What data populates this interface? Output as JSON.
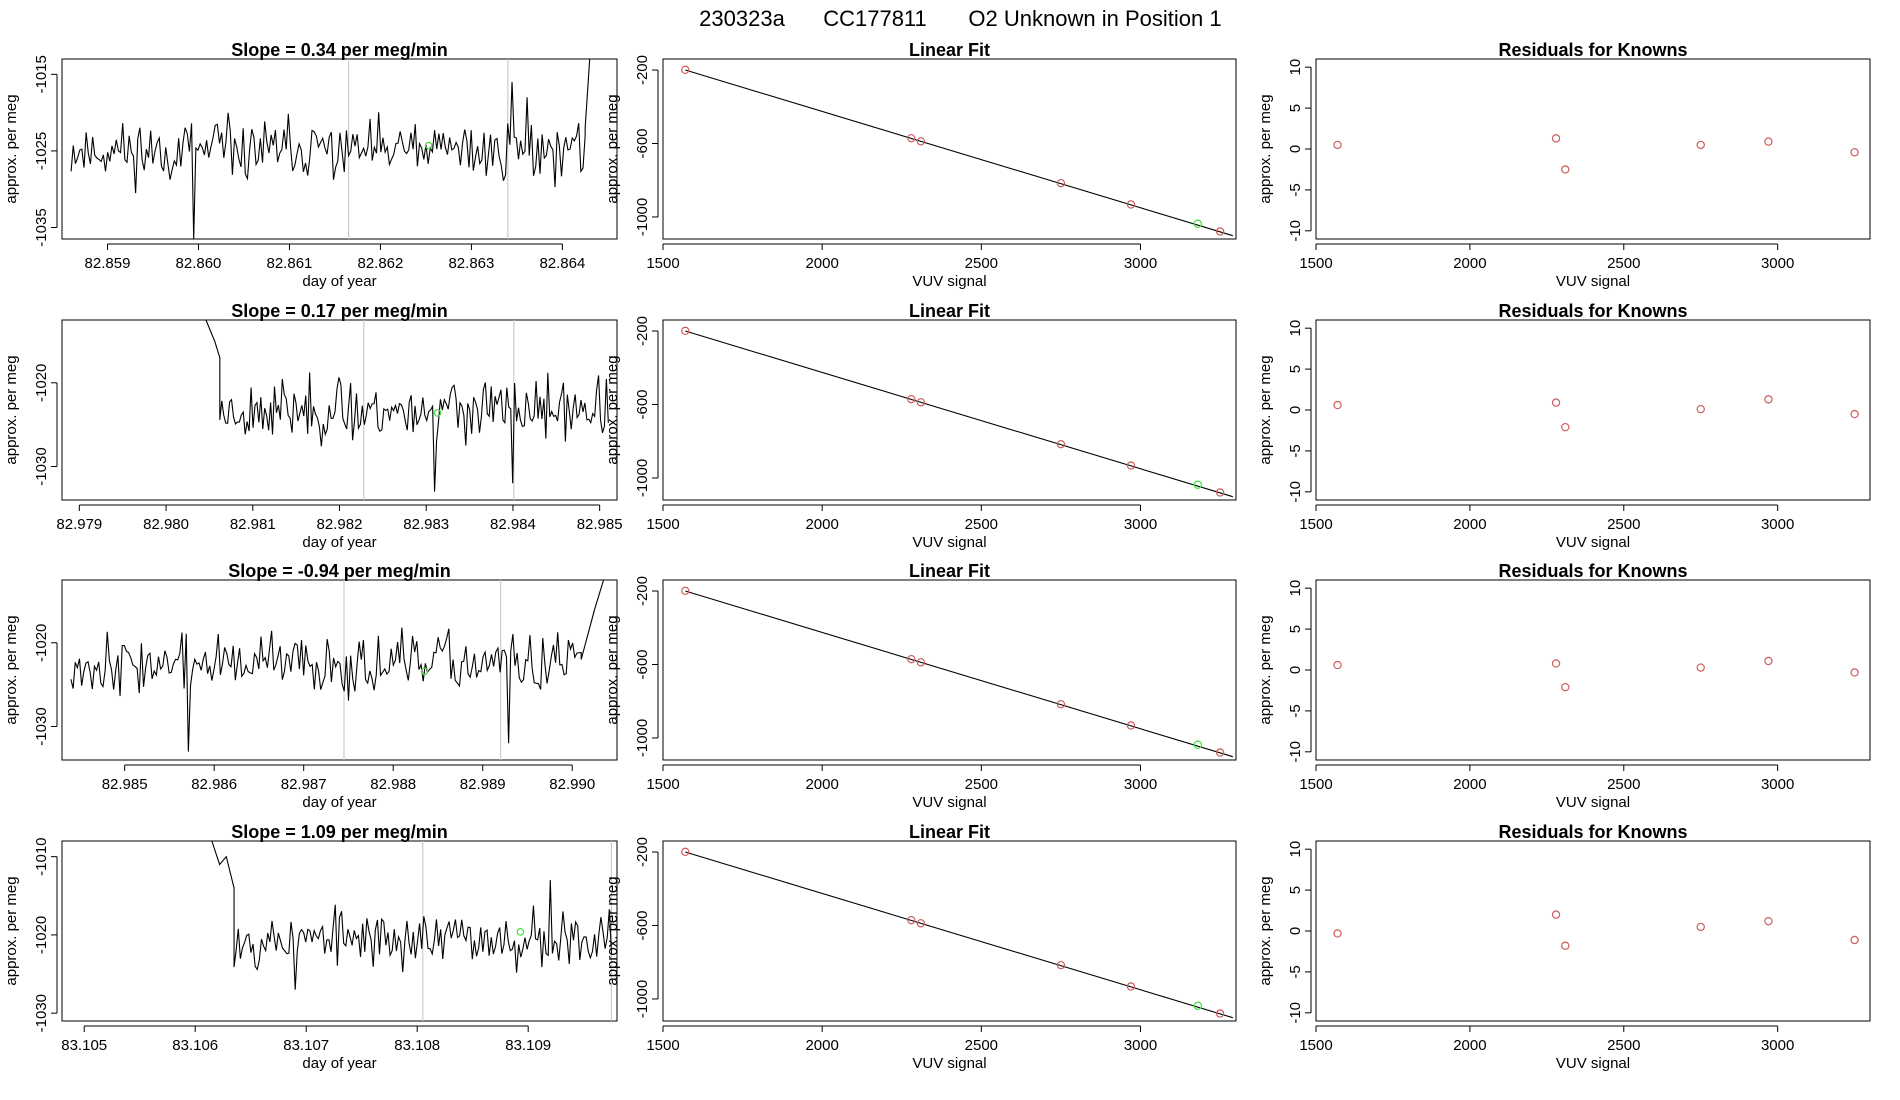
{
  "figure": {
    "title_run": "230323a",
    "title_cylinder": "CC177811",
    "title_position": "O2 Unknown in Position  1"
  },
  "colors": {
    "known_points": "#cd5c5c",
    "unknown_point": "#44dd44",
    "trace": "#000000",
    "jog_lines": "#cccccc"
  },
  "chart_data": [
    {
      "id": "row1-trace",
      "type": "line",
      "title": "Slope =  0.34  per meg/min",
      "xlabel": "day of year",
      "ylabel": "approx. per meg",
      "xlim": [
        82.8585,
        82.8646
      ],
      "ylim": [
        -1036.5,
        -1013
      ],
      "xticks": [
        82.859,
        82.86,
        82.861,
        82.862,
        82.863,
        82.864
      ],
      "xtick_labels": [
        "82.859",
        "82.860",
        "82.861",
        "82.862",
        "82.863",
        "82.864"
      ],
      "yticks": [
        -1035,
        -1025,
        -1015
      ],
      "ytick_labels": [
        "-1035",
        "-1025",
        "-1015"
      ],
      "trace": {
        "x_start": 82.8586,
        "x_end": 82.86425,
        "base": -1025,
        "amp": 3.6,
        "n": 240,
        "seed": 11,
        "features": [
          {
            "x": 82.85995,
            "y": -1036.5
          },
          {
            "x": 82.86345,
            "y": -1016
          },
          {
            "x": 82.8636,
            "y": -1018
          }
        ],
        "tail": [
          {
            "x": 82.86425,
            "y": -1022
          },
          {
            "x": 82.8643,
            "y": -1013
          }
        ]
      },
      "vlines": [
        82.86165,
        82.8634
      ],
      "unknown_point": {
        "x": 82.86253,
        "y": -1024.3
      }
    },
    {
      "id": "row1-fit",
      "type": "scatter",
      "title": "Linear Fit",
      "xlabel": "VUV signal",
      "ylabel": "approx. per meg",
      "xlim": [
        1500,
        3300
      ],
      "ylim": [
        -1120,
        -140
      ],
      "xticks": [
        1500,
        2000,
        2500,
        3000
      ],
      "xtick_labels": [
        "1500",
        "2000",
        "2500",
        "3000"
      ],
      "yticks": [
        -1000,
        -600,
        -200
      ],
      "ytick_labels": [
        "-1000",
        "-600",
        "-200"
      ],
      "fit_line": {
        "x": [
          1570,
          3290
        ],
        "y": [
          -200,
          -1102
        ]
      },
      "knowns": [
        {
          "x": 1570,
          "y": -199
        },
        {
          "x": 2280,
          "y": -571
        },
        {
          "x": 2310,
          "y": -588
        },
        {
          "x": 2750,
          "y": -816
        },
        {
          "x": 2970,
          "y": -932
        },
        {
          "x": 3250,
          "y": -1079
        }
      ],
      "unknown_point": {
        "x": 3180,
        "y": -1037
      }
    },
    {
      "id": "row1-resid",
      "type": "scatter",
      "title": "Residuals for Knowns",
      "xlabel": "VUV signal",
      "ylabel": "approx. per meg",
      "xlim": [
        1500,
        3300
      ],
      "ylim": [
        -11,
        11
      ],
      "xticks": [
        1500,
        2000,
        2500,
        3000
      ],
      "xtick_labels": [
        "1500",
        "2000",
        "2500",
        "3000"
      ],
      "yticks": [
        -10,
        -5,
        0,
        5,
        10
      ],
      "ytick_labels": [
        "-10",
        "-5",
        "0",
        "5",
        "10"
      ],
      "knowns": [
        {
          "x": 1570,
          "y": 0.5
        },
        {
          "x": 2280,
          "y": 1.3
        },
        {
          "x": 2310,
          "y": -2.5
        },
        {
          "x": 2750,
          "y": 0.5
        },
        {
          "x": 2970,
          "y": 0.9
        },
        {
          "x": 3250,
          "y": -0.4
        }
      ]
    },
    {
      "id": "row2-trace",
      "type": "line",
      "title": "Slope =  0.17  per meg/min",
      "xlabel": "day of year",
      "ylabel": "approx. per meg",
      "xlim": [
        82.9788,
        82.9852
      ],
      "ylim": [
        -1034,
        -1012.5
      ],
      "xticks": [
        82.979,
        82.98,
        82.981,
        82.982,
        82.983,
        82.984,
        82.985
      ],
      "xtick_labels": [
        "82.979",
        "82.980",
        "82.981",
        "82.982",
        "82.983",
        "82.984",
        "82.985"
      ],
      "yticks": [
        -1030,
        -1020
      ],
      "ytick_labels": [
        "-1030",
        "-1020"
      ],
      "trace": {
        "x_start": 82.98062,
        "x_end": 82.9851,
        "base": -1023.3,
        "amp": 3.3,
        "n": 200,
        "seed": 23,
        "head": [
          {
            "x": 82.98046,
            "y": -1012.5
          },
          {
            "x": 82.98056,
            "y": -1015
          },
          {
            "x": 82.98062,
            "y": -1017
          }
        ],
        "features": [
          {
            "x": 82.9831,
            "y": -1033
          },
          {
            "x": 82.984,
            "y": -1032
          }
        ],
        "tail": []
      },
      "vlines": [
        82.98228,
        82.98401
      ],
      "unknown_point": {
        "x": 82.98313,
        "y": -1023.6
      }
    },
    {
      "id": "row2-fit",
      "type": "scatter",
      "title": "Linear Fit",
      "xlabel": "VUV signal",
      "ylabel": "approx. per meg",
      "xlim": [
        1500,
        3300
      ],
      "ylim": [
        -1120,
        -140
      ],
      "xticks": [
        1500,
        2000,
        2500,
        3000
      ],
      "xtick_labels": [
        "1500",
        "2000",
        "2500",
        "3000"
      ],
      "yticks": [
        -1000,
        -600,
        -200
      ],
      "ytick_labels": [
        "-1000",
        "-600",
        "-200"
      ],
      "fit_line": {
        "x": [
          1570,
          3290
        ],
        "y": [
          -200,
          -1102
        ]
      },
      "knowns": [
        {
          "x": 1570,
          "y": -199
        },
        {
          "x": 2280,
          "y": -571
        },
        {
          "x": 2310,
          "y": -588
        },
        {
          "x": 2750,
          "y": -816
        },
        {
          "x": 2970,
          "y": -932
        },
        {
          "x": 3250,
          "y": -1079
        }
      ],
      "unknown_point": {
        "x": 3180,
        "y": -1037
      }
    },
    {
      "id": "row2-resid",
      "type": "scatter",
      "title": "Residuals for Knowns",
      "xlabel": "VUV signal",
      "ylabel": "approx. per meg",
      "xlim": [
        1500,
        3300
      ],
      "ylim": [
        -11,
        11
      ],
      "xticks": [
        1500,
        2000,
        2500,
        3000
      ],
      "xtick_labels": [
        "1500",
        "2000",
        "2500",
        "3000"
      ],
      "yticks": [
        -10,
        -5,
        0,
        5,
        10
      ],
      "ytick_labels": [
        "-10",
        "-5",
        "0",
        "5",
        "10"
      ],
      "knowns": [
        {
          "x": 1570,
          "y": 0.6
        },
        {
          "x": 2280,
          "y": 0.9
        },
        {
          "x": 2310,
          "y": -2.1
        },
        {
          "x": 2750,
          "y": 0.1
        },
        {
          "x": 2970,
          "y": 1.3
        },
        {
          "x": 3250,
          "y": -0.5
        }
      ]
    },
    {
      "id": "row3-trace",
      "type": "line",
      "title": "Slope =  -0.94  per meg/min",
      "xlabel": "day of year",
      "ylabel": "approx. per meg",
      "xlim": [
        82.9843,
        82.9905
      ],
      "ylim": [
        -1034,
        -1012.5
      ],
      "xticks": [
        82.985,
        82.986,
        82.987,
        82.988,
        82.989,
        82.99
      ],
      "xtick_labels": [
        "82.985",
        "82.986",
        "82.987",
        "82.988",
        "82.989",
        "82.990"
      ],
      "yticks": [
        -1030,
        -1020
      ],
      "ytick_labels": [
        "-1030",
        "-1020"
      ],
      "trace": {
        "x_start": 82.9844,
        "x_end": 82.9901,
        "base": -1022.5,
        "amp": 3.2,
        "n": 240,
        "seed": 37,
        "features": [
          {
            "x": 82.9857,
            "y": -1033
          },
          {
            "x": 82.9893,
            "y": -1032
          }
        ],
        "tail": [
          {
            "x": 82.9901,
            "y": -1022
          },
          {
            "x": 82.99025,
            "y": -1016
          },
          {
            "x": 82.99035,
            "y": -1012.5
          }
        ]
      },
      "vlines": [
        82.98745,
        82.9892
      ],
      "unknown_point": {
        "x": 82.98835,
        "y": -1023.4
      }
    },
    {
      "id": "row3-fit",
      "type": "scatter",
      "title": "Linear Fit",
      "xlabel": "VUV signal",
      "ylabel": "approx. per meg",
      "xlim": [
        1500,
        3300
      ],
      "ylim": [
        -1120,
        -140
      ],
      "xticks": [
        1500,
        2000,
        2500,
        3000
      ],
      "xtick_labels": [
        "1500",
        "2000",
        "2500",
        "3000"
      ],
      "yticks": [
        -1000,
        -600,
        -200
      ],
      "ytick_labels": [
        "-1000",
        "-600",
        "-200"
      ],
      "fit_line": {
        "x": [
          1570,
          3290
        ],
        "y": [
          -200,
          -1102
        ]
      },
      "knowns": [
        {
          "x": 1570,
          "y": -199
        },
        {
          "x": 2280,
          "y": -571
        },
        {
          "x": 2310,
          "y": -588
        },
        {
          "x": 2750,
          "y": -816
        },
        {
          "x": 2970,
          "y": -932
        },
        {
          "x": 3250,
          "y": -1079
        }
      ],
      "unknown_point": {
        "x": 3180,
        "y": -1037
      }
    },
    {
      "id": "row3-resid",
      "type": "scatter",
      "title": "Residuals for Knowns",
      "xlabel": "VUV signal",
      "ylabel": "approx. per meg",
      "xlim": [
        1500,
        3300
      ],
      "ylim": [
        -11,
        11
      ],
      "xticks": [
        1500,
        2000,
        2500,
        3000
      ],
      "xtick_labels": [
        "1500",
        "2000",
        "2500",
        "3000"
      ],
      "yticks": [
        -10,
        -5,
        0,
        5,
        10
      ],
      "ytick_labels": [
        "-10",
        "-5",
        "0",
        "5",
        "10"
      ],
      "knowns": [
        {
          "x": 1570,
          "y": 0.6
        },
        {
          "x": 2280,
          "y": 0.8
        },
        {
          "x": 2310,
          "y": -2.1
        },
        {
          "x": 2750,
          "y": 0.3
        },
        {
          "x": 2970,
          "y": 1.1
        },
        {
          "x": 3250,
          "y": -0.3
        }
      ]
    },
    {
      "id": "row4-trace",
      "type": "line",
      "title": "Slope =  1.09  per meg/min",
      "xlabel": "day of year",
      "ylabel": "approx. per meg",
      "xlim": [
        83.1048,
        83.1098
      ],
      "ylim": [
        -1031,
        -1008
      ],
      "xticks": [
        83.105,
        83.106,
        83.107,
        83.108,
        83.109
      ],
      "xtick_labels": [
        "83.105",
        "83.106",
        "83.107",
        "83.108",
        "83.109"
      ],
      "yticks": [
        -1030,
        -1020,
        -1010
      ],
      "ytick_labels": [
        "-1030",
        "-1020",
        "-1010"
      ],
      "trace": {
        "x_start": 83.10635,
        "x_end": 83.10975,
        "base": -1020.5,
        "amp": 3.3,
        "n": 180,
        "seed": 53,
        "head": [
          {
            "x": 83.10615,
            "y": -1008
          },
          {
            "x": 83.10622,
            "y": -1011
          },
          {
            "x": 83.10628,
            "y": -1010
          },
          {
            "x": 83.10635,
            "y": -1014
          }
        ],
        "features": [
          {
            "x": 83.1069,
            "y": -1027
          },
          {
            "x": 83.1092,
            "y": -1013
          }
        ],
        "tail": []
      },
      "vlines": [
        83.10805,
        83.10975
      ],
      "unknown_point": {
        "x": 83.10893,
        "y": -1019.6
      }
    },
    {
      "id": "row4-fit",
      "type": "scatter",
      "title": "Linear Fit",
      "xlabel": "VUV signal",
      "ylabel": "approx. per meg",
      "xlim": [
        1500,
        3300
      ],
      "ylim": [
        -1120,
        -140
      ],
      "xticks": [
        1500,
        2000,
        2500,
        3000
      ],
      "xtick_labels": [
        "1500",
        "2000",
        "2500",
        "3000"
      ],
      "yticks": [
        -1000,
        -600,
        -200
      ],
      "ytick_labels": [
        "-1000",
        "-600",
        "-200"
      ],
      "fit_line": {
        "x": [
          1570,
          3290
        ],
        "y": [
          -200,
          -1102
        ]
      },
      "knowns": [
        {
          "x": 1570,
          "y": -199
        },
        {
          "x": 2280,
          "y": -571
        },
        {
          "x": 2310,
          "y": -588
        },
        {
          "x": 2750,
          "y": -816
        },
        {
          "x": 2970,
          "y": -932
        },
        {
          "x": 3250,
          "y": -1079
        }
      ],
      "unknown_point": {
        "x": 3180,
        "y": -1037
      }
    },
    {
      "id": "row4-resid",
      "type": "scatter",
      "title": "Residuals for Knowns",
      "xlabel": "VUV signal",
      "ylabel": "approx. per meg",
      "xlim": [
        1500,
        3300
      ],
      "ylim": [
        -11,
        11
      ],
      "xticks": [
        1500,
        2000,
        2500,
        3000
      ],
      "xtick_labels": [
        "1500",
        "2000",
        "2500",
        "3000"
      ],
      "yticks": [
        -10,
        -5,
        0,
        5,
        10
      ],
      "ytick_labels": [
        "-10",
        "-5",
        "0",
        "5",
        "10"
      ],
      "knowns": [
        {
          "x": 1570,
          "y": -0.3
        },
        {
          "x": 2280,
          "y": 2.0
        },
        {
          "x": 2310,
          "y": -1.8
        },
        {
          "x": 2750,
          "y": 0.5
        },
        {
          "x": 2970,
          "y": 1.2
        },
        {
          "x": 3250,
          "y": -1.1
        }
      ]
    }
  ]
}
